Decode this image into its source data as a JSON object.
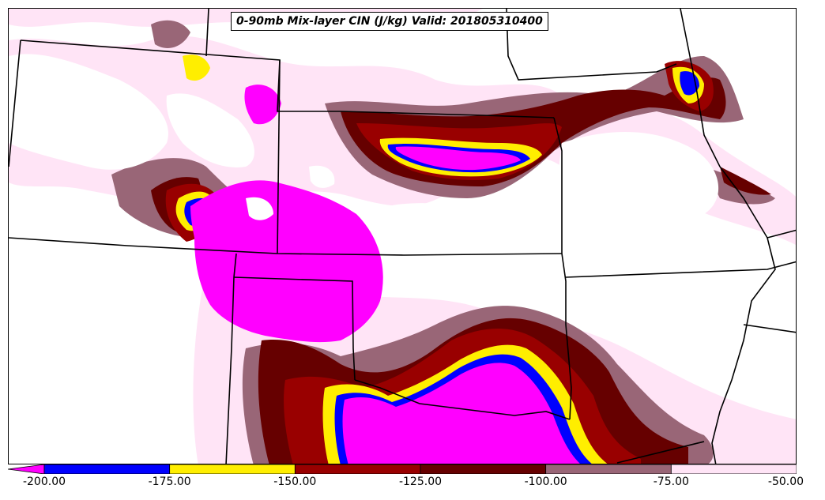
{
  "title": "0-90mb Mix-layer CIN (J/kg) Valid: 201805310400",
  "colorbar": {
    "min": -200,
    "max": -50,
    "extend": "min",
    "bins": [
      {
        "from": -200,
        "to": -175,
        "color": "#0000ff"
      },
      {
        "from": -175,
        "to": -150,
        "color": "#ffee00"
      },
      {
        "from": -150,
        "to": -125,
        "color": "#990000"
      },
      {
        "from": -125,
        "to": -100,
        "color": "#660000"
      },
      {
        "from": -100,
        "to": -75,
        "color": "#996677"
      },
      {
        "from": -75,
        "to": -50,
        "color": "#ffe4f6"
      }
    ],
    "below_min_color": "#ff00ff",
    "tick_labels": [
      "-200.00",
      "-175.00",
      "-150.00",
      "-125.00",
      "-100.00",
      "-75.00",
      "-50.00"
    ]
  },
  "map": {
    "field": "0-90mb Mix-layer CIN",
    "units": "J/kg",
    "valid_time": "201805310400",
    "boundaries": "state lines"
  }
}
